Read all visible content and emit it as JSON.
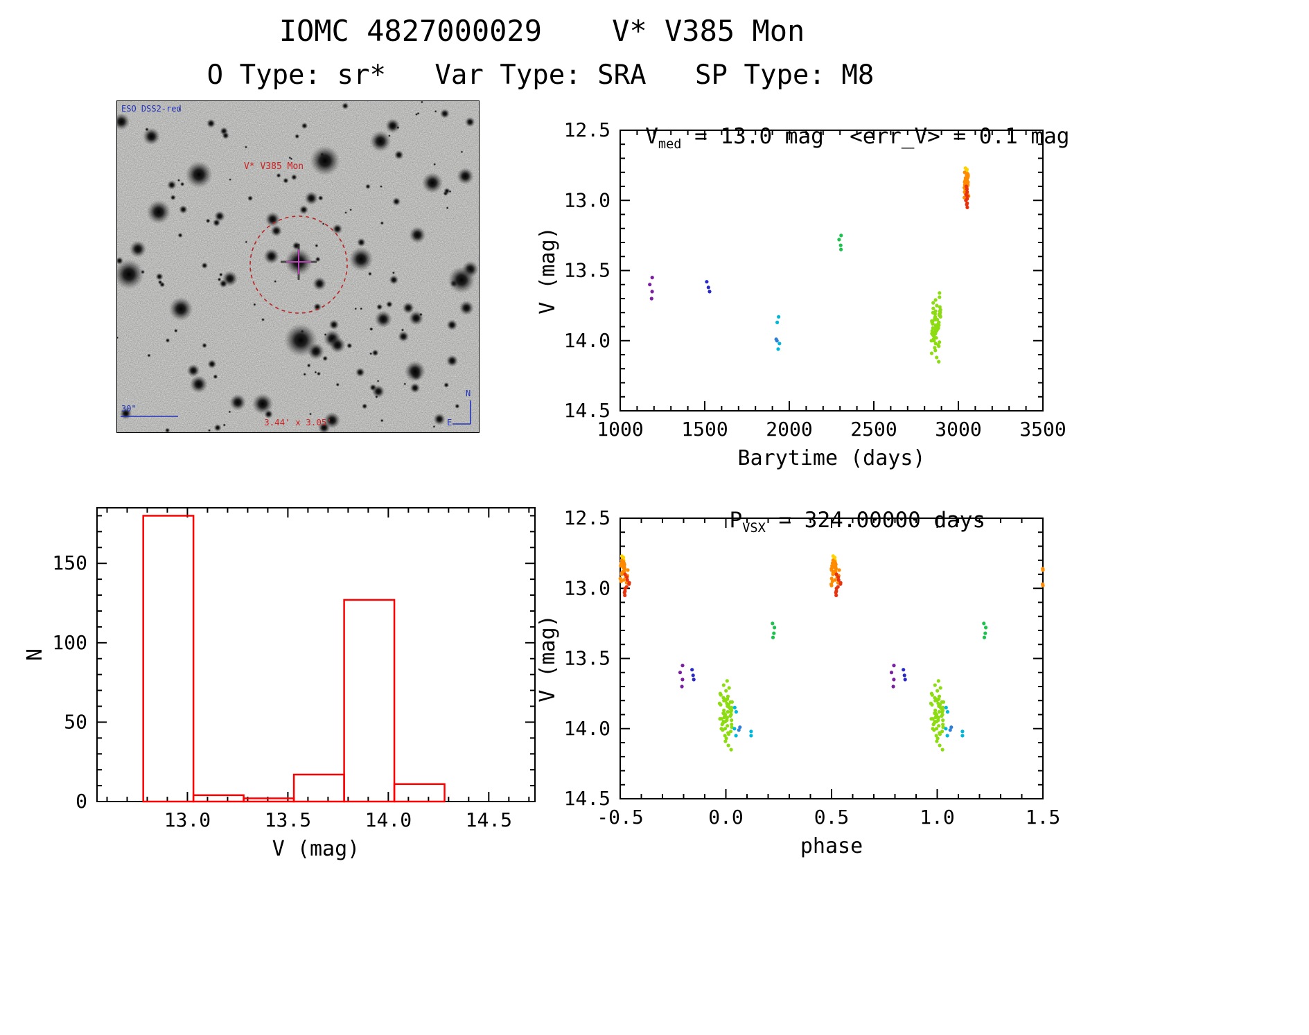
{
  "header": {
    "title": "IOMC 4827000029    V* V385 Mon",
    "subtitle": "O Type: sr*   Var Type: SRA   SP Type: M8"
  },
  "finding_chart": {
    "survey_label": "ESO DSS2-red",
    "target_label": "V* V385 Mon",
    "scale_label": "30\"",
    "fov_label": "3.44' x 3.05'",
    "compass_north": "N",
    "compass_east": "E",
    "circle_color": "#bb2222"
  },
  "chart_data": [
    {
      "type": "scatter",
      "name": "lightcurve-vs-barytime",
      "title": "V_med = 13.0 mag  <err_V> = 0.1 mag",
      "title_v": "V",
      "title_sub": "med",
      "title_rest": " = 13.0 mag  <err_V> = 0.1 mag",
      "xlabel": "Barytime (days)",
      "ylabel": "V (mag)",
      "xlim": [
        1000,
        3500
      ],
      "ylim": [
        14.5,
        12.5
      ],
      "xticks": [
        1000,
        1500,
        2000,
        2500,
        3000,
        3500
      ],
      "xtick_labels": [
        "1000",
        "1500",
        "2000",
        "2500",
        "3000",
        "3500"
      ],
      "yticks": [
        12.5,
        13.0,
        13.5,
        14.0,
        14.5
      ],
      "ytick_labels": [
        "12.5",
        "13.0",
        "13.5",
        "14.0",
        "14.5"
      ],
      "x_minor": 100,
      "y_minor": 0.1,
      "series": [
        {
          "name": "epoch-1-purple",
          "color": "#7a1fa0",
          "x": 1183,
          "x_jitter": 10,
          "mags": [
            13.55,
            13.6,
            13.65,
            13.7
          ]
        },
        {
          "name": "epoch-2-blue",
          "color": "#2929c8",
          "x": 1522,
          "x_jitter": 12,
          "mags": [
            13.58,
            13.62,
            13.65
          ]
        },
        {
          "name": "epoch-3-cyan",
          "color": "#00b7d9",
          "x": 1934,
          "x_jitter": 15,
          "mags": [
            13.83,
            13.87,
            14.02,
            14.06
          ]
        },
        {
          "name": "epoch-3-steelblue",
          "color": "#2f7fd6",
          "x": 1928,
          "x_jitter": 8,
          "mags": [
            13.99,
            14.0
          ]
        },
        {
          "name": "epoch-4-green",
          "color": "#1fc24e",
          "x": 2303,
          "x_jitter": 14,
          "mags": [
            13.25,
            13.28,
            13.32,
            13.35
          ]
        },
        {
          "name": "epoch-5-greenyellow",
          "color": "#8ddc12",
          "x": 2868,
          "x_jitter": 28,
          "mags": [
            13.66,
            13.69,
            13.71,
            13.73,
            13.75,
            13.76,
            13.77,
            13.78,
            13.79,
            13.79,
            13.8,
            13.8,
            13.81,
            13.81,
            13.82,
            13.82,
            13.83,
            13.83,
            13.84,
            13.84,
            13.85,
            13.85,
            13.86,
            13.86,
            13.87,
            13.87,
            13.88,
            13.88,
            13.89,
            13.89,
            13.9,
            13.9,
            13.91,
            13.91,
            13.92,
            13.92,
            13.93,
            13.93,
            13.94,
            13.94,
            13.95,
            13.95,
            13.96,
            13.97,
            13.97,
            13.98,
            13.99,
            14.0,
            14.0,
            14.01,
            14.02,
            14.03,
            14.04,
            14.05,
            14.07,
            14.09,
            14.12,
            14.15
          ]
        },
        {
          "name": "epoch-6-yellow",
          "color": "#ffd300",
          "x": 3046,
          "x_jitter": 8,
          "mags": [
            12.77,
            12.78,
            12.79,
            12.8
          ]
        },
        {
          "name": "epoch-6-orange",
          "color": "#ff8a00",
          "x": 3048,
          "x_jitter": 14,
          "mags": [
            12.8,
            12.81,
            12.82,
            12.82,
            12.83,
            12.83,
            12.84,
            12.84,
            12.85,
            12.85,
            12.86,
            12.86,
            12.87,
            12.87,
            12.88,
            12.88,
            12.89,
            12.89,
            12.9,
            12.9,
            12.91,
            12.92,
            12.93,
            12.94,
            12.95,
            12.96,
            12.97,
            12.98
          ]
        },
        {
          "name": "epoch-6-red",
          "color": "#e8330f",
          "x": 3052,
          "x_jitter": 10,
          "mags": [
            12.9,
            12.92,
            12.94,
            12.96,
            12.97,
            12.99,
            13.0,
            13.02,
            13.03,
            13.05
          ]
        }
      ]
    },
    {
      "type": "bar",
      "name": "magnitude-histogram",
      "title": "",
      "xlabel": "V (mag)",
      "ylabel": "N",
      "xlim": [
        12.55,
        14.73
      ],
      "ylim": [
        0,
        185
      ],
      "xticks": [
        13.0,
        13.5,
        14.0,
        14.5
      ],
      "xtick_labels": [
        "13.0",
        "13.5",
        "14.0",
        "14.5"
      ],
      "yticks": [
        0,
        50,
        100,
        150
      ],
      "ytick_labels": [
        "0",
        "50",
        "100",
        "150"
      ],
      "x_minor": 0.1,
      "y_minor": 10,
      "color": "#ff0000",
      "bin_edges": [
        12.78,
        13.03,
        13.28,
        13.53,
        13.78,
        14.03,
        14.28
      ],
      "counts": [
        180,
        4,
        2,
        17,
        127,
        11
      ]
    },
    {
      "type": "scatter",
      "name": "phase-folded-lightcurve",
      "title": "P_VSX = 324.00000 days",
      "title_p": "P",
      "title_sub": "VSX",
      "title_rest": " = 324.00000 days",
      "xlabel": "phase",
      "ylabel": "V (mag)",
      "xlim": [
        -0.5,
        1.5
      ],
      "ylim": [
        14.5,
        12.5
      ],
      "xticks": [
        -0.5,
        0.0,
        0.5,
        1.0,
        1.5
      ],
      "xtick_labels": [
        "-0.5",
        "0.0",
        "0.5",
        "1.0",
        "1.5"
      ],
      "yticks": [
        12.5,
        13.0,
        13.5,
        14.0,
        14.5
      ],
      "ytick_labels": [
        "12.5",
        "13.0",
        "13.5",
        "14.0",
        "14.5"
      ],
      "x_minor": 0.1,
      "y_minor": 0.1,
      "wrap": true,
      "series": [
        {
          "name": "phase-purple",
          "color": "#7a1fa0",
          "x": -0.21,
          "x_jitter": 0.008,
          "mags": [
            13.55,
            13.6,
            13.65,
            13.7
          ]
        },
        {
          "name": "phase-blue",
          "color": "#2929c8",
          "x": -0.155,
          "x_jitter": 0.006,
          "mags": [
            13.58,
            13.62,
            13.65
          ]
        },
        {
          "name": "phase-greenyellow",
          "color": "#8ddc12",
          "x": 0.0,
          "x_jitter": 0.03,
          "mags": [
            13.66,
            13.69,
            13.71,
            13.73,
            13.75,
            13.76,
            13.77,
            13.78,
            13.79,
            13.79,
            13.8,
            13.8,
            13.81,
            13.81,
            13.82,
            13.82,
            13.83,
            13.83,
            13.84,
            13.84,
            13.85,
            13.85,
            13.86,
            13.86,
            13.87,
            13.87,
            13.88,
            13.88,
            13.89,
            13.89,
            13.9,
            13.9,
            13.91,
            13.91,
            13.92,
            13.92,
            13.93,
            13.93,
            13.94,
            13.94,
            13.95,
            13.95,
            13.96,
            13.97,
            13.97,
            13.98,
            13.99,
            14.0,
            14.0,
            14.01,
            14.02,
            14.03,
            14.04,
            14.05,
            14.07,
            14.09,
            14.12,
            14.15
          ]
        },
        {
          "name": "phase-cyan-a",
          "color": "#00b7d9",
          "x": 0.05,
          "x_jitter": 0.012,
          "mags": [
            13.85,
            13.88,
            14.0,
            14.05
          ]
        },
        {
          "name": "phase-steelblue",
          "color": "#2f7fd6",
          "x": 0.065,
          "x_jitter": 0.006,
          "mags": [
            13.99,
            14.01
          ]
        },
        {
          "name": "phase-cyan-b",
          "color": "#00b7d9",
          "x": 0.115,
          "x_jitter": 0.006,
          "mags": [
            14.02,
            14.05
          ]
        },
        {
          "name": "phase-green",
          "color": "#1fc24e",
          "x": 0.225,
          "x_jitter": 0.008,
          "mags": [
            13.25,
            13.28,
            13.32,
            13.35
          ]
        },
        {
          "name": "phase-yellow",
          "color": "#ffd300",
          "x": 0.512,
          "x_jitter": 0.006,
          "mags": [
            12.77,
            12.78,
            12.79,
            12.8
          ]
        },
        {
          "name": "phase-orange",
          "color": "#ff8a00",
          "x": 0.518,
          "x_jitter": 0.02,
          "mags": [
            12.8,
            12.81,
            12.82,
            12.82,
            12.83,
            12.83,
            12.84,
            12.84,
            12.85,
            12.85,
            12.86,
            12.86,
            12.87,
            12.87,
            12.88,
            12.88,
            12.89,
            12.89,
            12.9,
            12.9,
            12.91,
            12.92,
            12.93,
            12.94,
            12.95,
            12.96,
            12.97,
            12.98
          ]
        },
        {
          "name": "phase-red",
          "color": "#e8330f",
          "x": 0.532,
          "x_jitter": 0.012,
          "mags": [
            12.9,
            12.92,
            12.94,
            12.96,
            12.97,
            12.99,
            13.0,
            13.02,
            13.03,
            13.05
          ]
        }
      ]
    }
  ]
}
